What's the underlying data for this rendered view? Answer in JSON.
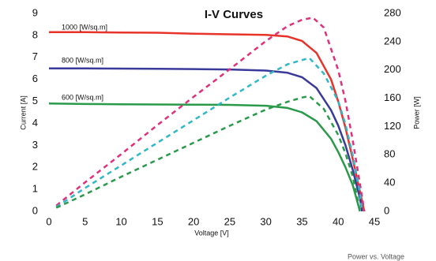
{
  "chart_data": {
    "type": "line",
    "title": "I-V Curves",
    "xlabel": "Voltage [V]",
    "ylabel": "Current [A]",
    "y2label": "Power [W]",
    "footnote": "Power vs. Voltage",
    "annotations": [
      "1000 [W/sq.m]",
      "800 [W/sq.m]",
      "600 [W/sq.m]"
    ],
    "xlim": [
      0,
      45
    ],
    "xticks": [
      0,
      5,
      10,
      15,
      20,
      25,
      30,
      35,
      40,
      45
    ],
    "ylim": [
      0,
      9
    ],
    "yticks": [
      0,
      1,
      2,
      3,
      4,
      5,
      6,
      7,
      8,
      9
    ],
    "y2lim": [
      0,
      280
    ],
    "y2ticks": [
      0,
      40,
      80,
      120,
      160,
      200,
      240,
      280
    ],
    "grid": false,
    "series": [
      {
        "color": "#e8332a",
        "style": "solid",
        "x": [
          0,
          5,
          10,
          15,
          20,
          25,
          30,
          33,
          35,
          37,
          39,
          40,
          41,
          42,
          43,
          43.6
        ],
        "values": [
          8.15,
          8.15,
          8.13,
          8.12,
          8.08,
          8.05,
          8.02,
          7.95,
          7.75,
          7.2,
          6.0,
          5.0,
          3.8,
          2.4,
          0.9,
          0
        ]
      },
      {
        "color": "#3a3a9a",
        "style": "solid",
        "x": [
          0,
          5,
          10,
          15,
          20,
          25,
          30,
          33,
          35,
          37,
          39,
          40,
          41,
          42,
          43,
          43.3
        ],
        "values": [
          6.5,
          6.5,
          6.49,
          6.48,
          6.47,
          6.45,
          6.4,
          6.3,
          6.1,
          5.6,
          4.6,
          3.9,
          3.0,
          1.9,
          0.6,
          0
        ]
      },
      {
        "color": "#2a9a4a",
        "style": "solid",
        "x": [
          0,
          5,
          10,
          15,
          20,
          25,
          30,
          33,
          35,
          37,
          39,
          40,
          41,
          42,
          42.6,
          43
        ],
        "values": [
          4.9,
          4.88,
          4.87,
          4.86,
          4.85,
          4.84,
          4.8,
          4.7,
          4.5,
          4.1,
          3.3,
          2.7,
          2.0,
          1.2,
          0.5,
          0
        ]
      },
      {
        "color": "#e0307a",
        "style": "dashed",
        "axis": "y2",
        "x": [
          1,
          5,
          10,
          15,
          20,
          25,
          30,
          33,
          35,
          36.5,
          38,
          40,
          41,
          42,
          43,
          43.6
        ],
        "values": [
          8,
          41,
          81,
          122,
          162,
          201,
          241,
          262,
          271,
          274,
          260,
          200,
          156,
          101,
          39,
          0
        ]
      },
      {
        "color": "#30b8c8",
        "style": "dashed",
        "axis": "y2",
        "x": [
          1,
          5,
          10,
          15,
          20,
          25,
          30,
          33,
          35,
          36,
          38,
          40,
          41,
          42,
          43,
          43.3
        ],
        "values": [
          6,
          33,
          65,
          97,
          129,
          161,
          192,
          208,
          214,
          217,
          195,
          156,
          123,
          80,
          26,
          0
        ]
      },
      {
        "color": "#2a9a4a",
        "style": "dashed",
        "axis": "y2",
        "x": [
          1,
          5,
          10,
          15,
          20,
          25,
          30,
          33,
          35,
          36,
          38,
          40,
          41,
          42,
          42.6,
          43
        ],
        "values": [
          5,
          24,
          49,
          73,
          97,
          121,
          144,
          155,
          161,
          163,
          145,
          108,
          82,
          50,
          21,
          0
        ]
      }
    ]
  }
}
